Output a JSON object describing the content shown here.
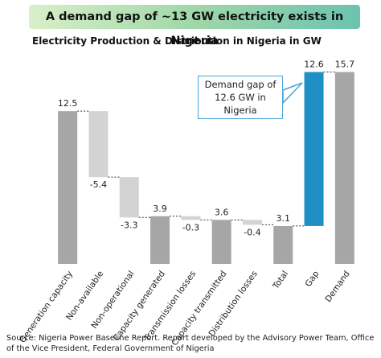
{
  "chart_data": {
    "type": "waterfall",
    "title": "A demand gap of ~13 GW electricity exists in Nigeria",
    "subtitle": "Electricity Production & Distribution in Nigeria in GW",
    "categories": [
      "Generation capacity",
      "Non-available",
      "Non-operational",
      "Capacity generated",
      "Transmission losses",
      "Capacity transmitted",
      "Distribution losses",
      "Total",
      "Gap",
      "Demand"
    ],
    "values": [
      12.5,
      -5.4,
      -3.3,
      3.9,
      -0.3,
      3.6,
      -0.4,
      3.1,
      12.6,
      15.7
    ],
    "measure": [
      "absolute",
      "relative",
      "relative",
      "absolute",
      "relative",
      "absolute",
      "relative",
      "absolute",
      "relative",
      "absolute"
    ],
    "colors": [
      "#a6a6a6",
      "#d3d3d3",
      "#d3d3d3",
      "#a6a6a6",
      "#d3d3d3",
      "#a6a6a6",
      "#d3d3d3",
      "#a6a6a6",
      "#1f8fc4",
      "#a6a6a6"
    ],
    "ylim": [
      0,
      16
    ],
    "annotation": "Demand gap of 12.6 GW in Nigeria",
    "source": "Source: Nigeria Power Baseline Report. Report developed by the Advisory Power Team, Office of the Vice President, Federal Government of Nigeria"
  }
}
